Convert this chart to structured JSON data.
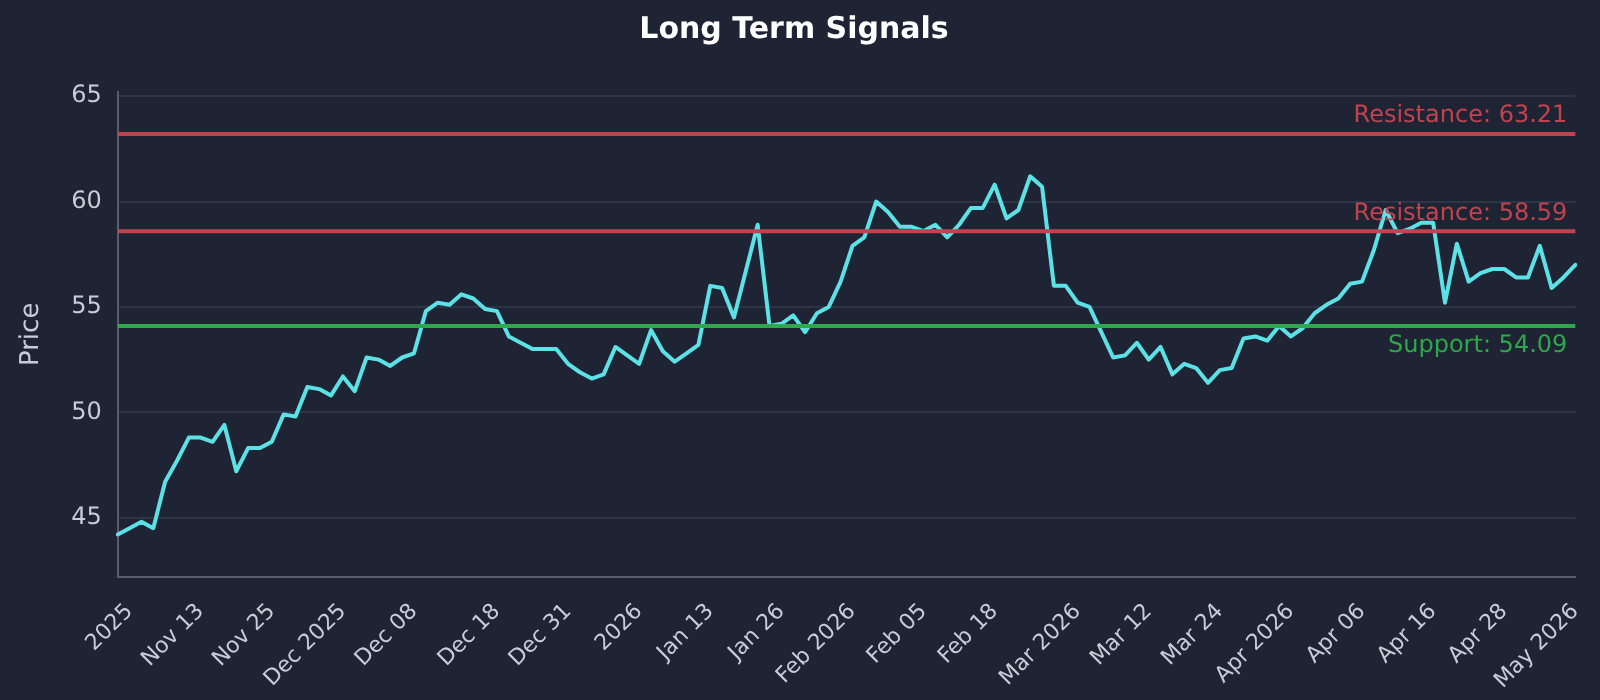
{
  "chart_data": {
    "type": "line",
    "title": "Long Term Signals",
    "ylabel": "Price",
    "categories": [
      null,
      "2025",
      null,
      null,
      null,
      null,
      null,
      "Nov 13",
      null,
      null,
      null,
      null,
      null,
      "Nov 25",
      null,
      null,
      null,
      null,
      null,
      "Dec 2025",
      null,
      null,
      null,
      null,
      null,
      "Dec 08",
      null,
      null,
      null,
      null,
      null,
      null,
      "Dec 18",
      null,
      null,
      null,
      null,
      null,
      "Dec 31",
      null,
      null,
      null,
      null,
      null,
      "2026",
      null,
      null,
      null,
      null,
      null,
      "Jan 13",
      null,
      null,
      null,
      null,
      null,
      "Jan 26",
      null,
      null,
      null,
      null,
      null,
      "Feb 2026",
      null,
      null,
      null,
      null,
      null,
      "Feb 05",
      null,
      null,
      null,
      null,
      null,
      "Feb 18",
      null,
      null,
      null,
      null,
      null,
      null,
      "Mar 2026",
      null,
      null,
      null,
      null,
      null,
      "Mar 12",
      null,
      null,
      null,
      null,
      null,
      "Mar 24",
      null,
      null,
      null,
      null,
      null,
      "Apr 2026",
      null,
      null,
      null,
      null,
      null,
      "Apr 06",
      null,
      null,
      null,
      null,
      null,
      "Apr 16",
      null,
      null,
      null,
      null,
      null,
      "Apr 28",
      null,
      null,
      null,
      null,
      null,
      "May 2026"
    ],
    "series": [
      {
        "color": "#5ce1e6",
        "values": [
          44.2,
          44.5,
          44.8,
          44.5,
          46.7,
          47.7,
          48.8,
          48.8,
          48.6,
          49.4,
          47.2,
          48.3,
          48.3,
          48.6,
          49.9,
          49.8,
          51.2,
          51.1,
          50.8,
          51.7,
          51.0,
          52.6,
          52.5,
          52.2,
          52.6,
          52.8,
          54.8,
          55.2,
          55.1,
          55.6,
          55.4,
          54.9,
          54.8,
          53.6,
          53.3,
          53.0,
          53.0,
          53.0,
          52.3,
          51.9,
          51.6,
          51.8,
          53.1,
          52.7,
          52.3,
          53.9,
          52.9,
          52.4,
          52.8,
          53.2,
          56.0,
          55.9,
          54.5,
          56.7,
          58.9,
          54.1,
          54.2,
          54.6,
          53.8,
          54.7,
          55.0,
          56.2,
          57.9,
          58.3,
          60.0,
          59.5,
          58.8,
          58.8,
          58.6,
          58.9,
          58.3,
          58.9,
          59.7,
          59.7,
          60.8,
          59.2,
          59.6,
          61.2,
          60.7,
          56.0,
          56.0,
          55.2,
          55.0,
          53.8,
          52.6,
          52.7,
          53.3,
          52.5,
          53.1,
          51.8,
          52.3,
          52.1,
          51.4,
          52.0,
          52.1,
          53.5,
          53.6,
          53.4,
          54.1,
          53.6,
          54.0,
          54.7,
          55.1,
          55.4,
          56.1,
          56.2,
          57.7,
          59.6,
          58.5,
          58.7,
          59.0,
          59.0,
          55.2,
          58.0,
          56.2,
          56.6,
          56.8,
          56.8,
          56.4,
          56.4,
          57.9,
          55.9,
          56.4,
          57.0
        ]
      }
    ],
    "ylim": [
      42.2,
      65.2
    ],
    "yticks": [
      45,
      50,
      55,
      60,
      65
    ],
    "grid": "y",
    "legend": false,
    "marker": "none",
    "line_style": "solid",
    "ref_lines": [
      {
        "axis": "y",
        "value": 63.21,
        "label": "Resistance: 63.21",
        "color": "#c0444f"
      },
      {
        "axis": "y",
        "value": 58.59,
        "label": "Resistance: 58.59",
        "color": "#c0444f"
      },
      {
        "axis": "y",
        "value": 54.09,
        "label": "Support: 54.09",
        "color": "#2ea84a"
      }
    ]
  }
}
